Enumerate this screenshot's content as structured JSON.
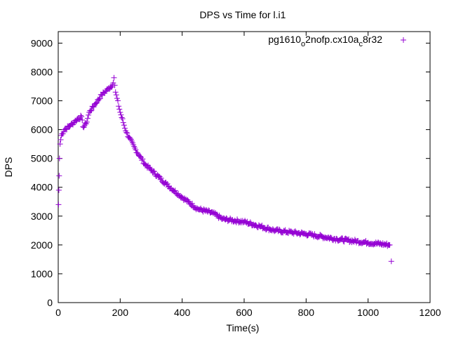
{
  "chart_data": {
    "type": "scatter",
    "title": "DPS vs Time for l.i1",
    "xlabel": "Time(s)",
    "ylabel": "DPS",
    "xlim": [
      0,
      1200
    ],
    "ylim": [
      0,
      9400
    ],
    "xticks": [
      "0",
      "200",
      "400",
      "600",
      "800",
      "1000",
      "1200"
    ],
    "xtick_values": [
      0,
      200,
      400,
      600,
      800,
      1000,
      1200
    ],
    "yticks": [
      "0",
      "1000",
      "2000",
      "3000",
      "4000",
      "5000",
      "6000",
      "7000",
      "8000",
      "9000"
    ],
    "ytick_values": [
      0,
      1000,
      2000,
      3000,
      4000,
      5000,
      6000,
      7000,
      8000,
      9000
    ],
    "grid": false,
    "legend_position": "top-right",
    "series": [
      {
        "name": "pg1610_o2nofp.cx10a_c8r32",
        "legend_parts": [
          "pg1610",
          "o",
          "2nofp.cx10a",
          "c",
          "8r32"
        ],
        "color": "#9400d3",
        "marker": "plus",
        "points": [
          [
            1,
            3400
          ],
          [
            2,
            3900
          ],
          [
            3,
            4400
          ],
          [
            4,
            5000
          ],
          [
            6,
            5500
          ],
          [
            10,
            5800
          ],
          [
            20,
            6000
          ],
          [
            40,
            6150
          ],
          [
            60,
            6350
          ],
          [
            75,
            6450
          ],
          [
            80,
            6100
          ],
          [
            90,
            6200
          ],
          [
            100,
            6600
          ],
          [
            120,
            6900
          ],
          [
            140,
            7200
          ],
          [
            160,
            7400
          ],
          [
            175,
            7550
          ],
          [
            180,
            7800
          ],
          [
            185,
            7300
          ],
          [
            200,
            6600
          ],
          [
            220,
            5900
          ],
          [
            250,
            5300
          ],
          [
            280,
            4800
          ],
          [
            300,
            4600
          ],
          [
            350,
            4100
          ],
          [
            400,
            3650
          ],
          [
            450,
            3250
          ],
          [
            500,
            3100
          ],
          [
            530,
            2900
          ],
          [
            600,
            2800
          ],
          [
            650,
            2650
          ],
          [
            700,
            2500
          ],
          [
            800,
            2380
          ],
          [
            900,
            2200
          ],
          [
            1000,
            2080
          ],
          [
            1070,
            2000
          ],
          [
            1075,
            1430
          ]
        ]
      }
    ]
  }
}
